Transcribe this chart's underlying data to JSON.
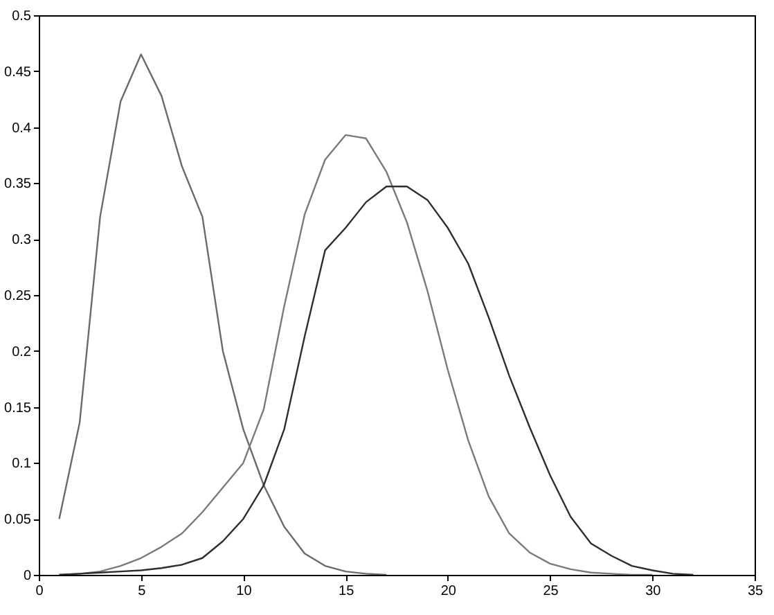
{
  "chart_data": {
    "type": "line",
    "xlim": [
      0,
      35
    ],
    "ylim": [
      0,
      0.5
    ],
    "xticks": [
      0,
      5,
      10,
      15,
      20,
      25,
      30,
      35
    ],
    "yticks": [
      0,
      0.05,
      0.1,
      0.15,
      0.2,
      0.25,
      0.3,
      0.35,
      0.4,
      0.45,
      0.5
    ],
    "grid": false,
    "legend": false,
    "marker": "none",
    "line_style": "solid",
    "x": [
      1,
      2,
      3,
      4,
      5,
      6,
      7,
      8,
      9,
      10,
      11,
      12,
      13,
      14,
      15,
      16,
      17,
      18,
      19,
      20,
      21,
      22,
      23,
      24,
      25,
      26,
      27,
      28,
      29,
      30,
      31,
      32
    ],
    "series": [
      {
        "color": "#6a6a6a",
        "values": [
          0.05,
          0.136,
          0.32,
          0.423,
          0.465,
          0.428,
          0.365,
          0.32,
          0.2,
          0.13,
          0.08,
          0.043,
          0.019,
          0.008,
          0.003,
          0.001,
          0,
          null,
          null,
          null,
          null,
          null,
          null,
          null,
          null,
          null,
          null,
          null,
          null,
          null,
          null,
          null
        ]
      },
      {
        "color": "#7a7a7a",
        "values": [
          0,
          0.001,
          0.003,
          0.008,
          0.015,
          0.025,
          0.037,
          0.056,
          0.078,
          0.1,
          0.148,
          0.24,
          0.322,
          0.371,
          0.393,
          0.39,
          0.36,
          0.315,
          0.254,
          0.183,
          0.12,
          0.07,
          0.037,
          0.02,
          0.01,
          0.005,
          0.002,
          0.001,
          0,
          0,
          null,
          null
        ]
      },
      {
        "color": "#2e2e2e",
        "values": [
          0,
          0.001,
          0.002,
          0.003,
          0.004,
          0.006,
          0.009,
          0.015,
          0.03,
          0.05,
          0.08,
          0.13,
          0.213,
          0.29,
          0.31,
          0.333,
          0.347,
          0.347,
          0.335,
          0.31,
          0.278,
          0.23,
          0.178,
          0.132,
          0.089,
          0.052,
          0.028,
          0.017,
          0.008,
          0.004,
          0.001,
          0
        ]
      }
    ]
  }
}
